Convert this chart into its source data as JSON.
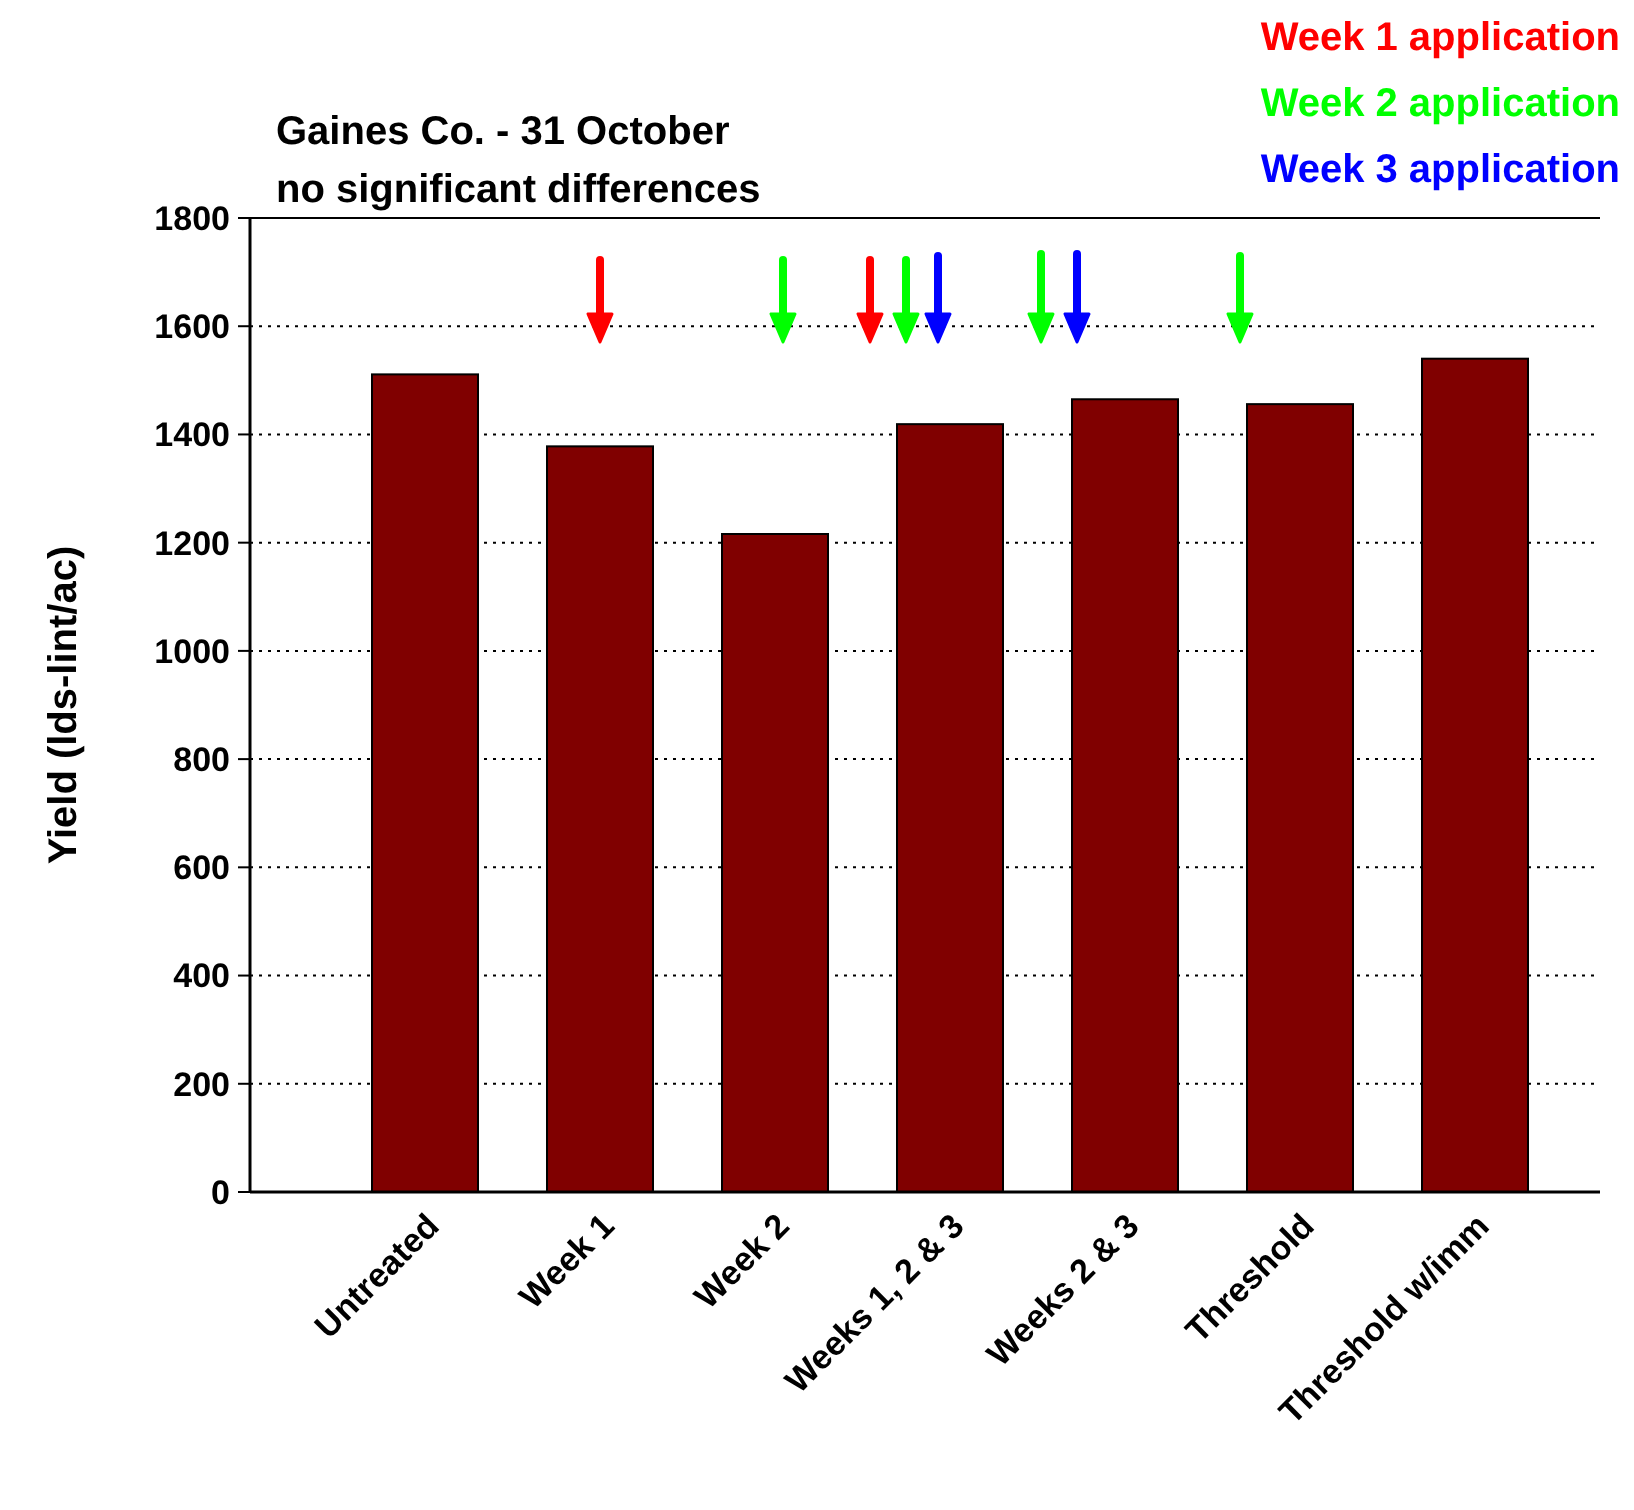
{
  "chart_data": {
    "type": "bar",
    "title": "Gaines Co. - 31 October",
    "subtitle": "no significant differences",
    "ylabel": "Yield (lds-lint/ac)",
    "categories": [
      "Untreated",
      "Week 1",
      "Week 2",
      "Weeks 1, 2 & 3",
      "Weeks 2 & 3",
      "Threshold",
      "Threshold w/imm"
    ],
    "values": [
      1511,
      1378,
      1216,
      1419,
      1465,
      1456,
      1540
    ],
    "color": "#800000",
    "ylim": [
      0,
      1800
    ],
    "yticks": [
      0,
      200,
      400,
      600,
      800,
      1000,
      1200,
      1400,
      1600,
      1800
    ],
    "grid": "y",
    "annotations": [
      "Week 1 application",
      "Week 2 application",
      "Week 3 application"
    ]
  }
}
